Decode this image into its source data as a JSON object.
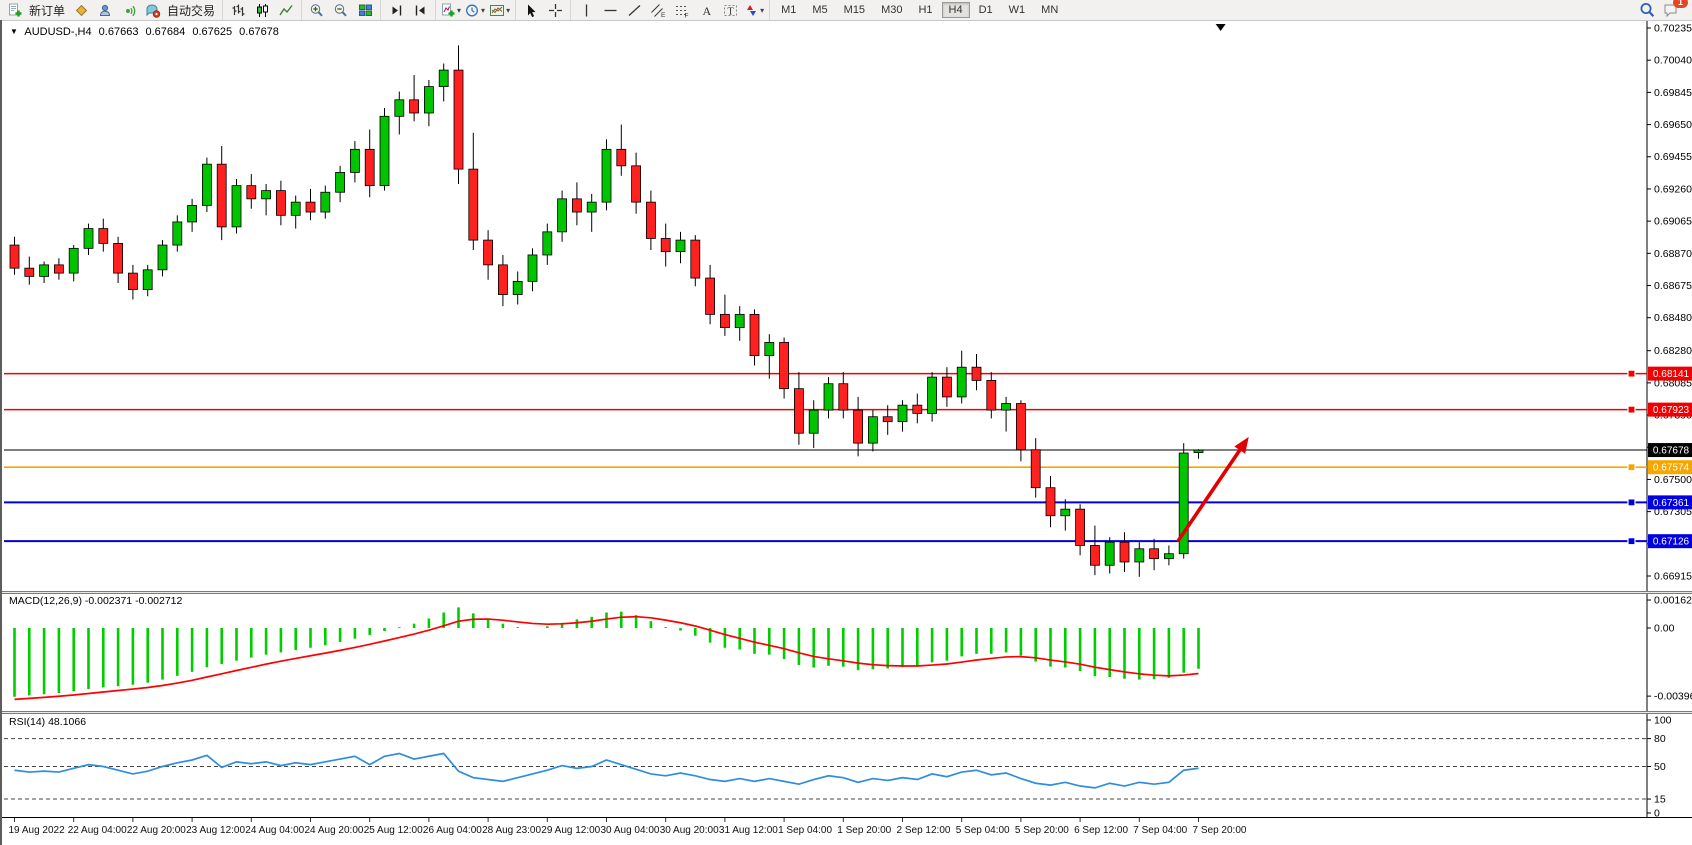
{
  "toolbar": {
    "new_order_label": "新订单",
    "autotrade_label": "自动交易",
    "timeframes": [
      "M1",
      "M5",
      "M15",
      "M30",
      "H1",
      "H4",
      "D1",
      "W1",
      "MN"
    ],
    "active_timeframe": "H4",
    "chat_badge": "1"
  },
  "chart": {
    "symbol_header": "AUDUSD-,H4",
    "ohlc": {
      "open": "0.67663",
      "high": "0.67684",
      "low": "0.67625",
      "close": "0.67678"
    },
    "price_axis_ticks": [
      "0.70235",
      "0.70040",
      "0.69845",
      "0.69650",
      "0.69455",
      "0.69260",
      "0.69065",
      "0.68870",
      "0.68675",
      "0.68480",
      "0.68280",
      "0.68085",
      "0.67890",
      "0.67695",
      "0.67500",
      "0.67305",
      "0.67110",
      "0.66915"
    ],
    "level_lines": [
      {
        "price": 0.68141,
        "label": "0.68141",
        "color": "#f00000",
        "width": 1.4
      },
      {
        "price": 0.67923,
        "label": "0.67923",
        "color": "#f00000",
        "width": 1.4
      },
      {
        "price": 0.67678,
        "label": "0.67678",
        "color": "#000000",
        "width": 1.0
      },
      {
        "price": 0.67574,
        "label": "0.67574",
        "color": "#f7a600",
        "width": 1.6
      },
      {
        "price": 0.67361,
        "label": "0.67361",
        "color": "#0000e0",
        "width": 2.0
      },
      {
        "price": 0.67126,
        "label": "0.67126",
        "color": "#0000e0",
        "width": 2.0
      }
    ],
    "time_axis_ticks": [
      "19 Aug 2022",
      "22 Aug 04:00",
      "22 Aug 20:00",
      "23 Aug 12:00",
      "24 Aug 04:00",
      "24 Aug 20:00",
      "25 Aug 12:00",
      "26 Aug 04:00",
      "28 Aug 23:00",
      "29 Aug 12:00",
      "30 Aug 04:00",
      "30 Aug 20:00",
      "31 Aug 12:00",
      "1 Sep 04:00",
      "1 Sep 20:00",
      "2 Sep 12:00",
      "5 Sep 04:00",
      "5 Sep 20:00",
      "6 Sep 12:00",
      "7 Sep 04:00",
      "7 Sep 20:00"
    ],
    "arrow_annotation": {
      "color": "#e00000",
      "from": {
        "index": 78.9,
        "price": 0.67124
      },
      "to": {
        "index": 83.7,
        "price": 0.67758
      }
    },
    "top_marker_index": 81.8
  },
  "chart_data": {
    "type": "candlestick",
    "symbol": "AUDUSD-",
    "timeframe": "H4",
    "price_range": {
      "max": 0.70235,
      "min": 0.66915
    },
    "x_labels_every": 4,
    "up_color": "#00c400",
    "down_color": "#ff2020",
    "candles": [
      [
        0.6892,
        0.6897,
        0.6874,
        0.6878
      ],
      [
        0.6878,
        0.6885,
        0.6868,
        0.6873
      ],
      [
        0.6873,
        0.6882,
        0.6869,
        0.688
      ],
      [
        0.688,
        0.6884,
        0.6871,
        0.6875
      ],
      [
        0.6875,
        0.6892,
        0.687,
        0.689
      ],
      [
        0.689,
        0.6905,
        0.6886,
        0.6902
      ],
      [
        0.6902,
        0.6908,
        0.6888,
        0.6893
      ],
      [
        0.6893,
        0.6897,
        0.6869,
        0.6875
      ],
      [
        0.6875,
        0.688,
        0.6859,
        0.6865
      ],
      [
        0.6865,
        0.688,
        0.6861,
        0.6877
      ],
      [
        0.6877,
        0.6895,
        0.6873,
        0.6892
      ],
      [
        0.6892,
        0.691,
        0.6888,
        0.6906
      ],
      [
        0.6906,
        0.692,
        0.69,
        0.6916
      ],
      [
        0.6916,
        0.6945,
        0.6912,
        0.6941
      ],
      [
        0.6941,
        0.6952,
        0.6895,
        0.6903
      ],
      [
        0.6903,
        0.6932,
        0.6899,
        0.6928
      ],
      [
        0.6928,
        0.6935,
        0.6914,
        0.692
      ],
      [
        0.692,
        0.6929,
        0.691,
        0.6925
      ],
      [
        0.6925,
        0.6931,
        0.6904,
        0.691
      ],
      [
        0.691,
        0.6922,
        0.6902,
        0.6918
      ],
      [
        0.6918,
        0.6926,
        0.6907,
        0.6912
      ],
      [
        0.6912,
        0.6928,
        0.6908,
        0.6924
      ],
      [
        0.6924,
        0.694,
        0.6918,
        0.6936
      ],
      [
        0.6936,
        0.6955,
        0.693,
        0.695
      ],
      [
        0.695,
        0.6962,
        0.6921,
        0.6928
      ],
      [
        0.6928,
        0.6975,
        0.6925,
        0.697
      ],
      [
        0.697,
        0.6985,
        0.6959,
        0.698
      ],
      [
        0.698,
        0.6995,
        0.6967,
        0.6972
      ],
      [
        0.6972,
        0.6992,
        0.6964,
        0.6988
      ],
      [
        0.6988,
        0.7002,
        0.6979,
        0.6998
      ],
      [
        0.6998,
        0.7013,
        0.6929,
        0.6938
      ],
      [
        0.6938,
        0.696,
        0.6889,
        0.6895
      ],
      [
        0.6895,
        0.6901,
        0.6871,
        0.688
      ],
      [
        0.688,
        0.6886,
        0.6855,
        0.6862
      ],
      [
        0.6862,
        0.6876,
        0.6856,
        0.687
      ],
      [
        0.687,
        0.689,
        0.6864,
        0.6886
      ],
      [
        0.6886,
        0.6905,
        0.688,
        0.69
      ],
      [
        0.69,
        0.6925,
        0.6894,
        0.692
      ],
      [
        0.692,
        0.693,
        0.6904,
        0.6912
      ],
      [
        0.6912,
        0.6923,
        0.69,
        0.6918
      ],
      [
        0.6918,
        0.6956,
        0.6913,
        0.695
      ],
      [
        0.695,
        0.6965,
        0.6934,
        0.694
      ],
      [
        0.694,
        0.6948,
        0.6911,
        0.6918
      ],
      [
        0.6918,
        0.6925,
        0.6889,
        0.6896
      ],
      [
        0.6896,
        0.6905,
        0.6879,
        0.6888
      ],
      [
        0.6888,
        0.69,
        0.6881,
        0.6895
      ],
      [
        0.6895,
        0.6898,
        0.6867,
        0.6872
      ],
      [
        0.6872,
        0.688,
        0.6844,
        0.685
      ],
      [
        0.685,
        0.6862,
        0.6837,
        0.6842
      ],
      [
        0.6842,
        0.6855,
        0.6834,
        0.685
      ],
      [
        0.685,
        0.6853,
        0.6819,
        0.6825
      ],
      [
        0.6825,
        0.6838,
        0.6811,
        0.6833
      ],
      [
        0.6833,
        0.6836,
        0.6799,
        0.6805
      ],
      [
        0.6805,
        0.6815,
        0.6771,
        0.6778
      ],
      [
        0.6778,
        0.6798,
        0.6769,
        0.6792
      ],
      [
        0.6792,
        0.6812,
        0.6787,
        0.6808
      ],
      [
        0.6808,
        0.6815,
        0.6787,
        0.6792
      ],
      [
        0.6792,
        0.68,
        0.6764,
        0.6772
      ],
      [
        0.6772,
        0.6792,
        0.6767,
        0.6788
      ],
      [
        0.6788,
        0.6795,
        0.6777,
        0.6785
      ],
      [
        0.6785,
        0.6798,
        0.6779,
        0.6795
      ],
      [
        0.6795,
        0.6802,
        0.6784,
        0.679
      ],
      [
        0.679,
        0.6815,
        0.6785,
        0.6812
      ],
      [
        0.6812,
        0.6818,
        0.6794,
        0.68
      ],
      [
        0.68,
        0.6828,
        0.6796,
        0.6818
      ],
      [
        0.6818,
        0.6826,
        0.6804,
        0.681
      ],
      [
        0.681,
        0.6815,
        0.6787,
        0.6792
      ],
      [
        0.6792,
        0.68,
        0.6779,
        0.6796
      ],
      [
        0.6796,
        0.6798,
        0.6761,
        0.6768
      ],
      [
        0.6768,
        0.6775,
        0.6739,
        0.6745
      ],
      [
        0.6745,
        0.6752,
        0.6721,
        0.6728
      ],
      [
        0.6728,
        0.6738,
        0.6719,
        0.6732
      ],
      [
        0.6732,
        0.6735,
        0.6704,
        0.671
      ],
      [
        0.671,
        0.6722,
        0.6692,
        0.6698
      ],
      [
        0.6698,
        0.6715,
        0.6693,
        0.6712
      ],
      [
        0.6712,
        0.6718,
        0.6694,
        0.67
      ],
      [
        0.67,
        0.6712,
        0.6691,
        0.6708
      ],
      [
        0.6708,
        0.6714,
        0.6695,
        0.6702
      ],
      [
        0.6702,
        0.671,
        0.6698,
        0.6705
      ],
      [
        0.6705,
        0.6772,
        0.6702,
        0.6766
      ],
      [
        0.67663,
        0.67684,
        0.67625,
        0.67678
      ]
    ],
    "indicators": {
      "macd": {
        "label": "MACD(12,26,9) -0.002371 -0.002712",
        "current": {
          "macd": -0.002371,
          "signal": -0.002712
        },
        "histogram_color": "#00ce00",
        "signal_color": "#ff0000",
        "signal_alpha": 0.25,
        "axis_ticks": [
          {
            "value": 0.001626,
            "label": "0.001626"
          },
          {
            "value": 0,
            "label": "0.00"
          },
          {
            "value": -0.003961,
            "label": "-0.003961"
          }
        ],
        "histogram": [
          -0.004,
          -0.00392,
          -0.00385,
          -0.00378,
          -0.00368,
          -0.00355,
          -0.00345,
          -0.00338,
          -0.0033,
          -0.00318,
          -0.003,
          -0.00278,
          -0.00255,
          -0.00228,
          -0.0021,
          -0.0019,
          -0.00172,
          -0.00155,
          -0.00142,
          -0.00128,
          -0.00115,
          -0.001,
          -0.00082,
          -0.00062,
          -0.0004,
          -0.00018,
          5e-05,
          0.00025,
          0.00055,
          0.0009,
          0.0012,
          0.00085,
          0.00055,
          0.00025,
          5e-05,
          0.0,
          0.0001,
          0.0003,
          0.0005,
          0.00065,
          0.0009,
          0.00095,
          0.00075,
          0.0004,
          5e-05,
          -0.00015,
          -0.00045,
          -0.00085,
          -0.00115,
          -0.00125,
          -0.0015,
          -0.00155,
          -0.0018,
          -0.00215,
          -0.0023,
          -0.0022,
          -0.00225,
          -0.00245,
          -0.0024,
          -0.00235,
          -0.00228,
          -0.0022,
          -0.002,
          -0.0019,
          -0.00165,
          -0.0015,
          -0.0015,
          -0.00142,
          -0.0016,
          -0.00195,
          -0.00225,
          -0.0023,
          -0.0025,
          -0.0028,
          -0.00285,
          -0.00295,
          -0.003,
          -0.00298,
          -0.0029,
          -0.0026,
          -0.00237
        ]
      },
      "rsi": {
        "label": "RSI(14) 48.1066",
        "period": 14,
        "current": 48.1066,
        "color": "#2e8dde",
        "levels": [
          {
            "value": 100,
            "label": "100",
            "dashed": false
          },
          {
            "value": 80,
            "label": "80",
            "dashed": true
          },
          {
            "value": 50,
            "label": "50",
            "dashed": true
          },
          {
            "value": 15,
            "label": "15",
            "dashed": true
          },
          {
            "value": 0,
            "label": "0",
            "dashed": false
          }
        ],
        "values": [
          46,
          44,
          45,
          44,
          48,
          52,
          50,
          46,
          42,
          45,
          50,
          54,
          57,
          62,
          49,
          55,
          53,
          55,
          51,
          54,
          52,
          55,
          58,
          61,
          52,
          61,
          64,
          58,
          61,
          64,
          45,
          38,
          36,
          34,
          38,
          42,
          46,
          51,
          48,
          50,
          57,
          52,
          47,
          42,
          40,
          43,
          40,
          36,
          34,
          37,
          34,
          37,
          34,
          31,
          36,
          40,
          38,
          33,
          37,
          35,
          38,
          36,
          42,
          39,
          44,
          46,
          41,
          43,
          37,
          32,
          30,
          33,
          29,
          27,
          32,
          29,
          33,
          31,
          33,
          46,
          48.1066
        ]
      }
    }
  }
}
